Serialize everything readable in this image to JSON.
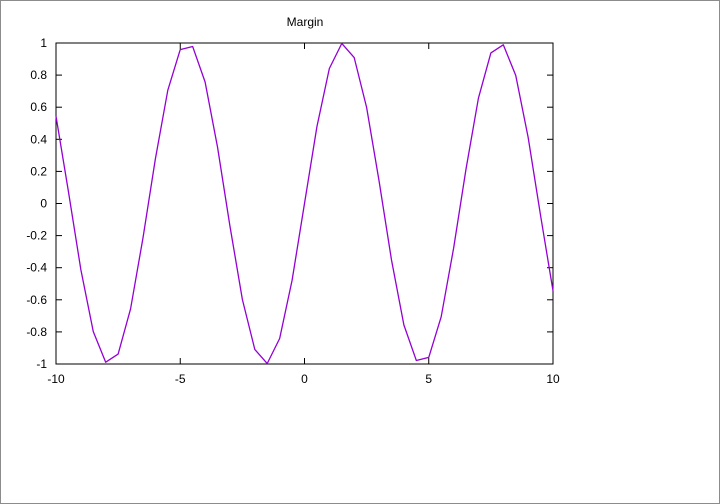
{
  "chart_data": {
    "type": "line",
    "title": "Margin",
    "xlabel": "",
    "ylabel": "",
    "xlim": [
      -10,
      10
    ],
    "ylim": [
      -1,
      1
    ],
    "x_ticks": [
      -10,
      -5,
      0,
      5,
      10
    ],
    "x_tick_labels": [
      "-10",
      "-5",
      "0",
      "5",
      "10"
    ],
    "y_ticks": [
      1,
      0.8,
      0.6,
      0.4,
      0.2,
      0,
      -0.2,
      -0.4,
      -0.6,
      -0.8,
      -1
    ],
    "y_tick_labels": [
      "1",
      "0.8",
      "0.6",
      "0.4",
      "0.2",
      "0",
      "-0.2",
      "-0.4",
      "-0.6",
      "-0.8",
      "-1"
    ],
    "grid": false,
    "legend": "none",
    "series": [
      {
        "color": "#9400d3",
        "x": [
          -10,
          -9.5,
          -9,
          -8.5,
          -8,
          -7.5,
          -7,
          -6.5,
          -6,
          -5.5,
          -5,
          -4.5,
          -4,
          -3.5,
          -3,
          -2.5,
          -2,
          -1.5,
          -1,
          -0.5,
          0,
          0.5,
          1,
          1.5,
          2,
          2.5,
          3,
          3.5,
          4,
          4.5,
          5,
          5.5,
          6,
          6.5,
          7,
          7.5,
          8,
          8.5,
          9,
          9.5,
          10
        ],
        "y": [
          0.544,
          0.075,
          -0.412,
          -0.798,
          -0.989,
          -0.938,
          -0.657,
          -0.215,
          0.279,
          0.706,
          0.959,
          0.978,
          0.757,
          0.351,
          -0.141,
          -0.598,
          -0.909,
          -0.997,
          -0.841,
          -0.479,
          0,
          0.479,
          0.841,
          0.997,
          0.909,
          0.598,
          0.141,
          -0.351,
          -0.757,
          -0.978,
          -0.959,
          -0.706,
          -0.279,
          0.215,
          0.657,
          0.938,
          0.989,
          0.798,
          0.412,
          -0.075,
          -0.544
        ]
      }
    ]
  }
}
